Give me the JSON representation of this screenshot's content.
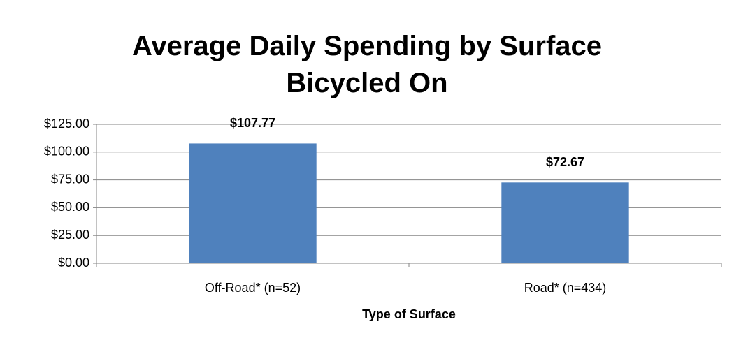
{
  "chart_data": {
    "type": "bar",
    "title": "Average Daily Spending by Surface Bicycled On",
    "x_label": "Type of Surface",
    "categories": [
      "Off-Road* (n=52)",
      "Road* (n=434)"
    ],
    "values": [
      107.77,
      72.67
    ],
    "value_labels": [
      "$107.77",
      "$72.67"
    ],
    "color": "#4f81bd",
    "ylim": [
      0,
      125
    ],
    "yticks": [
      {
        "value": 0,
        "label": "$0.00"
      },
      {
        "value": 25,
        "label": "$25.00"
      },
      {
        "value": 50,
        "label": "$50.00"
      },
      {
        "value": 75,
        "label": "$75.00"
      },
      {
        "value": 100,
        "label": "$100.00"
      },
      {
        "value": 125,
        "label": "$125.00"
      }
    ],
    "grid": true
  }
}
